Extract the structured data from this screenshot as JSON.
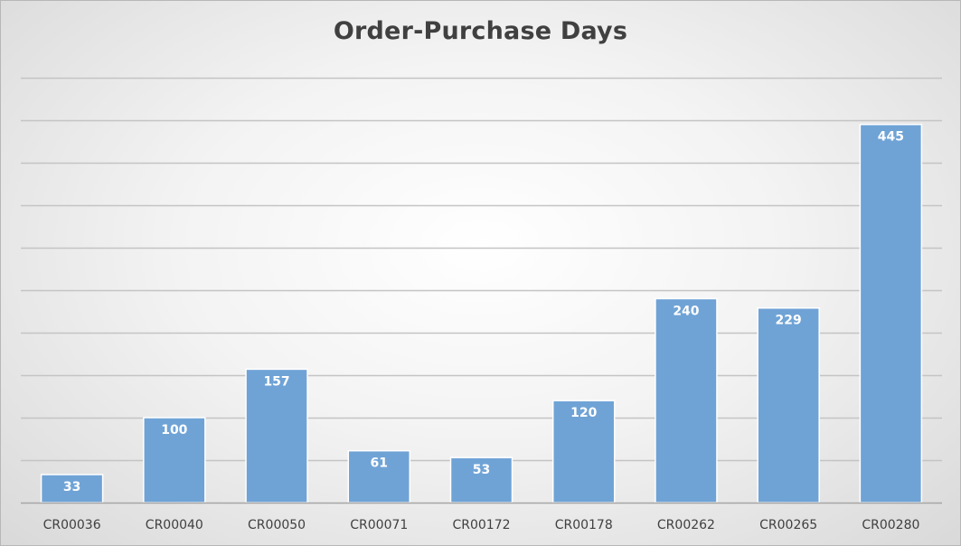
{
  "chart_data": {
    "type": "bar",
    "title": "Order-Purchase Days",
    "xlabel": "",
    "ylabel": "",
    "categories": [
      "CR00036",
      "CR00040",
      "CR00050",
      "CR00071",
      "CR00172",
      "CR00178",
      "CR00262",
      "CR00265",
      "CR00280"
    ],
    "values": [
      33,
      100,
      157,
      61,
      53,
      120,
      240,
      229,
      445
    ],
    "ylim": [
      0,
      500
    ],
    "grid": true,
    "legend": "none",
    "data_labels": true,
    "colors": {
      "bar_fill": "#6fa3d6",
      "bar_stroke": "#ffffff",
      "gridline": "#c4c4c4",
      "axis": "#a6a6a6",
      "data_label": "#ffffff",
      "tick_label": "#404040",
      "title": "#404040"
    }
  }
}
